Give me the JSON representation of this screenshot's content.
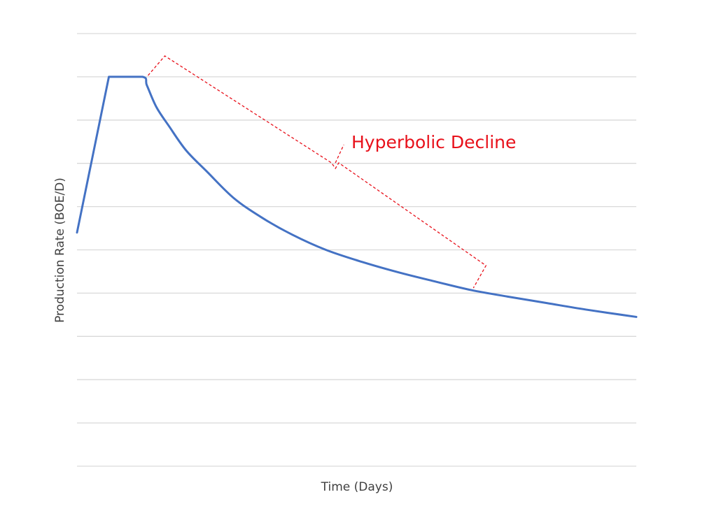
{
  "chart_data": {
    "type": "line",
    "title": "",
    "xlabel": "Time (Days)",
    "ylabel": "Production Rate (BOE/D)",
    "xlim": [
      0,
      100
    ],
    "ylim": [
      0,
      10
    ],
    "grid": true,
    "legend": "none",
    "series": [
      {
        "color": "#4472c4",
        "x": [
          0,
          5.7,
          11.7,
          12.5,
          14.2,
          16.5,
          19.5,
          23.3,
          28,
          33,
          38.5,
          44.5,
          51,
          57.5,
          64,
          70.5,
          77,
          84,
          91,
          100
        ],
        "y": [
          5.4,
          9.0,
          9.0,
          8.8,
          8.3,
          7.85,
          7.3,
          6.8,
          6.2,
          5.75,
          5.35,
          5.0,
          4.72,
          4.48,
          4.27,
          4.07,
          3.92,
          3.77,
          3.62,
          3.45
        ]
      }
    ],
    "annotations": [
      {
        "text": "Hyperbolic Decline",
        "color": "#e8101a",
        "range_x": [
          12.7,
          72.5
        ]
      }
    ]
  }
}
